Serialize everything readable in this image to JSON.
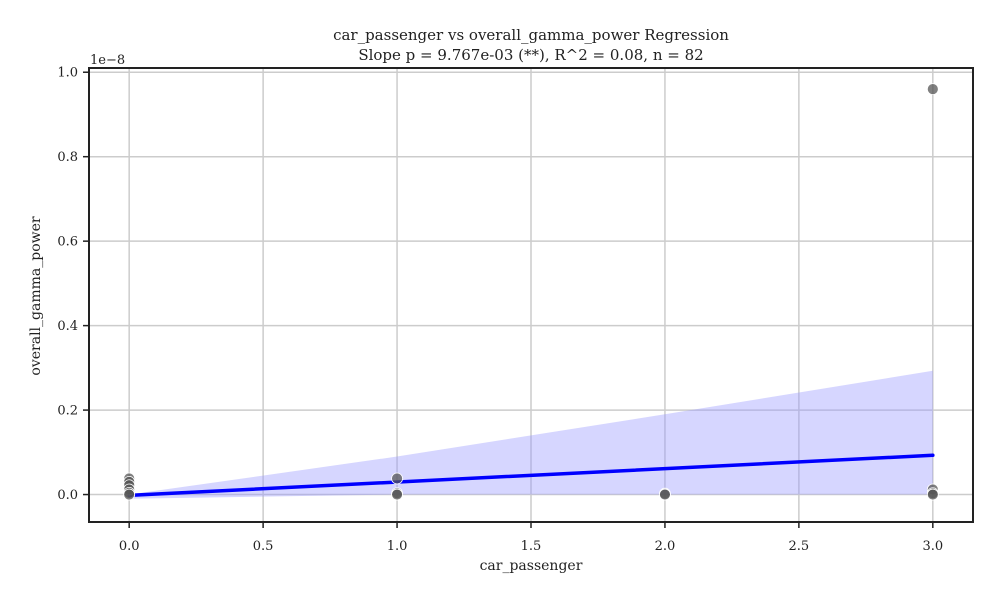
{
  "chart_data": {
    "type": "scatter",
    "title": "car_passenger vs overall_gamma_power Regression",
    "subtitle": "Slope p = 9.767e-03 (**), R^2 = 0.08, n = 82",
    "xlabel": "car_passenger",
    "ylabel": "overall_gamma_power",
    "y_offset_label": "1e−8",
    "xlim": [
      -0.15,
      3.15
    ],
    "ylim": [
      -0.065,
      1.01
    ],
    "x_ticks": [
      0.0,
      0.5,
      1.0,
      1.5,
      2.0,
      2.5,
      3.0
    ],
    "x_tick_labels": [
      "0.0",
      "0.5",
      "1.0",
      "1.5",
      "2.0",
      "2.5",
      "3.0"
    ],
    "y_ticks": [
      0.0,
      0.2,
      0.4,
      0.6,
      0.8,
      1.0
    ],
    "y_tick_labels": [
      "0.0",
      "0.2",
      "0.4",
      "0.6",
      "0.8",
      "1.0"
    ],
    "grid": true,
    "points": [
      {
        "x": 0.0,
        "y": 0.038
      },
      {
        "x": 0.0,
        "y": 0.03
      },
      {
        "x": 0.0,
        "y": 0.022
      },
      {
        "x": 0.0,
        "y": 0.012
      },
      {
        "x": 0.0,
        "y": 0.004
      },
      {
        "x": 0.0,
        "y": 0.0
      },
      {
        "x": 1.0,
        "y": 0.038
      },
      {
        "x": 1.0,
        "y": 0.003
      },
      {
        "x": 1.0,
        "y": 0.0
      },
      {
        "x": 2.0,
        "y": 0.002
      },
      {
        "x": 2.0,
        "y": 0.0
      },
      {
        "x": 3.0,
        "y": 0.96
      },
      {
        "x": 3.0,
        "y": 0.012
      },
      {
        "x": 3.0,
        "y": 0.003
      },
      {
        "x": 3.0,
        "y": 0.0
      }
    ],
    "regression_line": {
      "x": [
        0.0,
        3.0
      ],
      "y": [
        -0.002,
        0.093
      ]
    },
    "confidence_band": {
      "x": [
        0.0,
        1.0,
        2.0,
        3.0
      ],
      "upper": [
        0.0,
        0.09,
        0.19,
        0.293
      ],
      "lower": [
        -0.01,
        0.0,
        0.0,
        0.0
      ]
    },
    "colors": {
      "points": "#555555",
      "regression_line": "#0000ff",
      "confidence_band": "#9999ff",
      "grid": "#cccccc",
      "frame": "#222222"
    }
  }
}
